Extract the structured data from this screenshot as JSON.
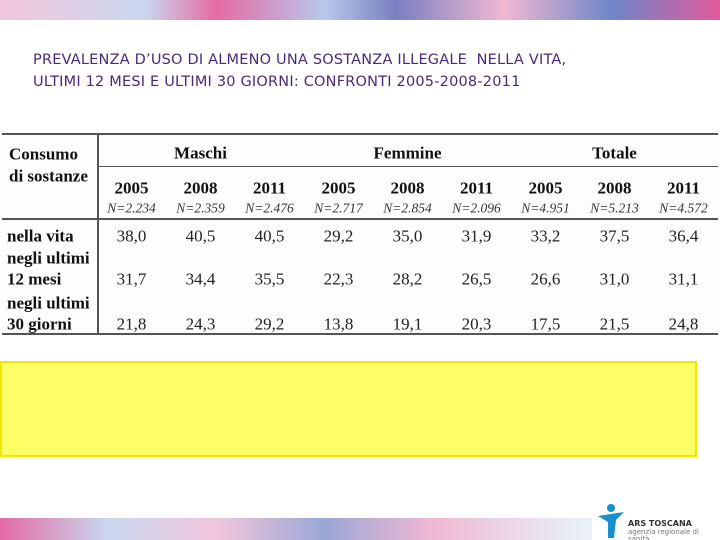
{
  "header": {
    "title": [
      "PREVALENZA D’USO DI ALMENO UNA SOSTANZA ILLEGALE  NELLA VITA,",
      "ULTIMI 12 MESI E ULTIMI 30 GIORNI: CONFRONTI 2005-2008-2011"
    ]
  },
  "table": {
    "corner": [
      "Consumo",
      "di sostanze"
    ],
    "groups": [
      "Maschi",
      "Femmine",
      "Totale"
    ],
    "years": [
      "2005",
      "2008",
      "2011",
      "2005",
      "2008",
      "2011",
      "2005",
      "2008",
      "2011"
    ],
    "n": [
      "N=2.234",
      "N=2.359",
      "N=2.476",
      "N=2.717",
      "N=2.854",
      "N=2.096",
      "N=4.951",
      "N=5.213",
      "N=4.572"
    ],
    "rows": [
      {
        "label": [
          "nella vita"
        ],
        "values": [
          "38,0",
          "40,5",
          "40,5",
          "29,2",
          "35,0",
          "31,9",
          "33,2",
          "37,5",
          "36,4"
        ]
      },
      {
        "label": [
          "negli ultimi",
          "12 mesi"
        ],
        "values": [
          "31,7",
          "34,4",
          "35,5",
          "22,3",
          "28,2",
          "26,5",
          "26,6",
          "31,0",
          "31,1"
        ]
      },
      {
        "label": [
          "negli ultimi",
          "30 giorni"
        ],
        "values": [
          "21,8",
          "24,3",
          "29,2",
          "13,8",
          "19,1",
          "20,3",
          "17,5",
          "21,5",
          "24,8"
        ]
      }
    ]
  },
  "logo": {
    "name": "ARS TOSCANA",
    "subtitle": "agenzia regionale di sanità"
  }
}
